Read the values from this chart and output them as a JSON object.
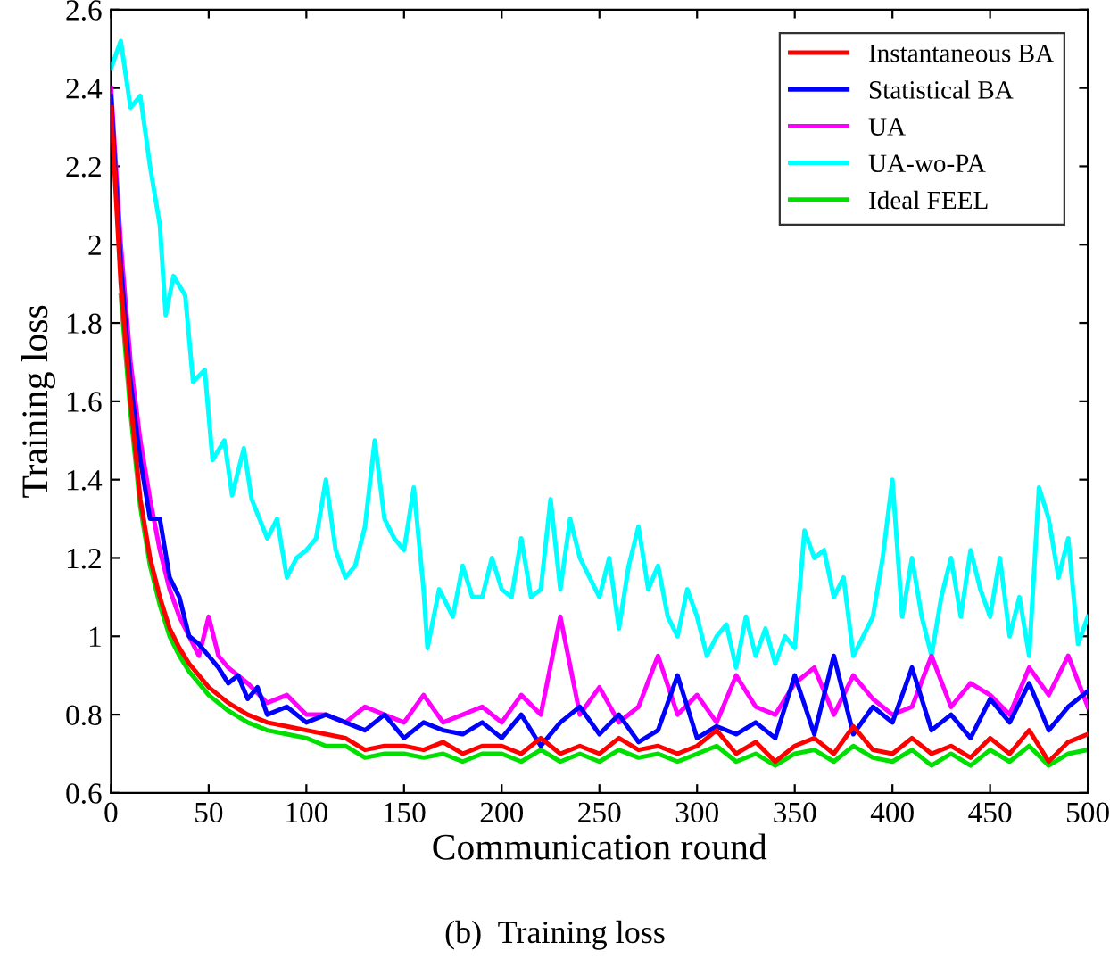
{
  "chart_data": {
    "type": "line",
    "xlabel": "Communication round",
    "ylabel": "Training loss",
    "annotations": [
      "(b)  Training loss"
    ],
    "xlim": [
      0,
      500
    ],
    "ylim": [
      0.6,
      2.6
    ],
    "xticks": [
      0,
      50,
      100,
      150,
      200,
      250,
      300,
      350,
      400,
      450,
      500
    ],
    "yticks": [
      0.6,
      0.8,
      1,
      1.2,
      1.4,
      1.6,
      1.8,
      2,
      2.2,
      2.4,
      2.6
    ],
    "grid": false,
    "legend": "top right",
    "marker": "none",
    "line_style": "solid",
    "series": [
      {
        "name": "Instantaneous BA",
        "color": "#ff0000",
        "x": [
          0,
          5,
          10,
          15,
          20,
          25,
          30,
          35,
          40,
          45,
          50,
          60,
          70,
          80,
          90,
          100,
          110,
          120,
          130,
          140,
          150,
          160,
          170,
          180,
          190,
          200,
          210,
          220,
          230,
          240,
          250,
          260,
          270,
          280,
          290,
          300,
          310,
          320,
          330,
          340,
          350,
          360,
          370,
          380,
          390,
          400,
          410,
          420,
          430,
          440,
          450,
          460,
          470,
          480,
          490,
          500
        ],
        "values": [
          2.35,
          1.9,
          1.6,
          1.35,
          1.2,
          1.1,
          1.02,
          0.97,
          0.93,
          0.9,
          0.87,
          0.83,
          0.8,
          0.78,
          0.77,
          0.76,
          0.75,
          0.74,
          0.71,
          0.72,
          0.72,
          0.71,
          0.73,
          0.7,
          0.72,
          0.72,
          0.7,
          0.74,
          0.7,
          0.72,
          0.7,
          0.74,
          0.71,
          0.72,
          0.7,
          0.72,
          0.76,
          0.7,
          0.73,
          0.68,
          0.72,
          0.74,
          0.7,
          0.77,
          0.71,
          0.7,
          0.74,
          0.7,
          0.72,
          0.69,
          0.74,
          0.7,
          0.76,
          0.68,
          0.73,
          0.75
        ]
      },
      {
        "name": "Statistical BA",
        "color": "#0000ff",
        "x": [
          0,
          5,
          10,
          15,
          20,
          25,
          30,
          35,
          40,
          45,
          50,
          55,
          60,
          65,
          70,
          75,
          80,
          90,
          100,
          110,
          120,
          130,
          140,
          150,
          160,
          170,
          180,
          190,
          200,
          210,
          220,
          230,
          240,
          250,
          260,
          270,
          280,
          290,
          300,
          310,
          320,
          330,
          340,
          350,
          360,
          370,
          380,
          390,
          400,
          410,
          420,
          430,
          440,
          450,
          460,
          470,
          480,
          490,
          500
        ],
        "values": [
          2.38,
          1.95,
          1.65,
          1.45,
          1.3,
          1.3,
          1.15,
          1.1,
          1.0,
          0.98,
          0.95,
          0.92,
          0.88,
          0.9,
          0.84,
          0.87,
          0.8,
          0.82,
          0.78,
          0.8,
          0.78,
          0.76,
          0.8,
          0.74,
          0.78,
          0.76,
          0.75,
          0.78,
          0.74,
          0.8,
          0.72,
          0.78,
          0.82,
          0.75,
          0.8,
          0.73,
          0.76,
          0.9,
          0.74,
          0.77,
          0.75,
          0.78,
          0.74,
          0.9,
          0.75,
          0.95,
          0.75,
          0.82,
          0.78,
          0.92,
          0.76,
          0.8,
          0.74,
          0.84,
          0.78,
          0.88,
          0.76,
          0.82,
          0.86
        ]
      },
      {
        "name": "UA",
        "color": "#ff00ff",
        "x": [
          0,
          5,
          10,
          15,
          20,
          25,
          30,
          35,
          40,
          45,
          50,
          55,
          60,
          70,
          80,
          90,
          100,
          110,
          120,
          130,
          140,
          150,
          160,
          170,
          180,
          190,
          200,
          210,
          220,
          230,
          240,
          250,
          260,
          270,
          280,
          290,
          300,
          310,
          320,
          330,
          340,
          350,
          360,
          370,
          380,
          390,
          400,
          410,
          420,
          430,
          440,
          450,
          460,
          470,
          480,
          490,
          500
        ],
        "values": [
          2.4,
          2.0,
          1.7,
          1.5,
          1.35,
          1.22,
          1.12,
          1.05,
          1.0,
          0.95,
          1.05,
          0.95,
          0.92,
          0.88,
          0.83,
          0.85,
          0.8,
          0.8,
          0.78,
          0.82,
          0.8,
          0.78,
          0.85,
          0.78,
          0.8,
          0.82,
          0.78,
          0.85,
          0.8,
          1.05,
          0.8,
          0.87,
          0.78,
          0.82,
          0.95,
          0.8,
          0.85,
          0.78,
          0.9,
          0.82,
          0.8,
          0.88,
          0.92,
          0.8,
          0.9,
          0.84,
          0.8,
          0.82,
          0.95,
          0.82,
          0.88,
          0.85,
          0.8,
          0.92,
          0.85,
          0.95,
          0.82
        ]
      },
      {
        "name": "UA-wo-PA",
        "color": "#00ffff",
        "x": [
          0,
          5,
          10,
          15,
          20,
          25,
          28,
          32,
          38,
          42,
          48,
          52,
          58,
          62,
          68,
          72,
          80,
          85,
          90,
          95,
          100,
          105,
          110,
          115,
          120,
          125,
          130,
          135,
          140,
          145,
          150,
          155,
          160,
          162,
          168,
          175,
          180,
          185,
          190,
          195,
          200,
          205,
          210,
          215,
          220,
          225,
          230,
          235,
          240,
          245,
          250,
          255,
          260,
          265,
          270,
          275,
          280,
          285,
          290,
          295,
          300,
          305,
          310,
          315,
          320,
          325,
          330,
          335,
          340,
          345,
          350,
          355,
          360,
          365,
          370,
          375,
          380,
          385,
          390,
          395,
          400,
          405,
          410,
          415,
          420,
          425,
          430,
          435,
          440,
          445,
          450,
          455,
          460,
          465,
          470,
          475,
          480,
          485,
          490,
          495,
          500
        ],
        "values": [
          2.45,
          2.52,
          2.35,
          2.38,
          2.2,
          2.05,
          1.82,
          1.92,
          1.87,
          1.65,
          1.68,
          1.45,
          1.5,
          1.36,
          1.48,
          1.35,
          1.25,
          1.3,
          1.15,
          1.2,
          1.22,
          1.25,
          1.4,
          1.22,
          1.15,
          1.18,
          1.28,
          1.5,
          1.3,
          1.25,
          1.22,
          1.38,
          1.12,
          0.97,
          1.12,
          1.05,
          1.18,
          1.1,
          1.1,
          1.2,
          1.12,
          1.1,
          1.25,
          1.1,
          1.12,
          1.35,
          1.12,
          1.3,
          1.2,
          1.15,
          1.1,
          1.2,
          1.02,
          1.18,
          1.28,
          1.12,
          1.18,
          1.05,
          1.0,
          1.12,
          1.05,
          0.95,
          1.0,
          1.03,
          0.92,
          1.05,
          0.95,
          1.02,
          0.93,
          1.0,
          0.97,
          1.27,
          1.2,
          1.22,
          1.1,
          1.15,
          0.95,
          1.0,
          1.05,
          1.2,
          1.4,
          1.05,
          1.2,
          1.05,
          0.95,
          1.1,
          1.2,
          1.05,
          1.22,
          1.12,
          1.05,
          1.2,
          1.0,
          1.1,
          0.95,
          1.38,
          1.3,
          1.15,
          1.25,
          0.98,
          1.05
        ]
      },
      {
        "name": "Ideal FEEL",
        "color": "#00e000",
        "x": [
          5,
          10,
          15,
          20,
          25,
          30,
          35,
          40,
          45,
          50,
          60,
          70,
          80,
          90,
          100,
          110,
          120,
          130,
          140,
          150,
          160,
          170,
          180,
          190,
          200,
          210,
          220,
          230,
          240,
          250,
          260,
          270,
          280,
          290,
          300,
          310,
          320,
          330,
          340,
          350,
          360,
          370,
          380,
          390,
          400,
          410,
          420,
          430,
          440,
          450,
          460,
          470,
          480,
          490,
          500
        ],
        "values": [
          1.87,
          1.57,
          1.33,
          1.18,
          1.08,
          1.0,
          0.95,
          0.91,
          0.88,
          0.85,
          0.81,
          0.78,
          0.76,
          0.75,
          0.74,
          0.72,
          0.72,
          0.69,
          0.7,
          0.7,
          0.69,
          0.7,
          0.68,
          0.7,
          0.7,
          0.68,
          0.71,
          0.68,
          0.7,
          0.68,
          0.71,
          0.69,
          0.7,
          0.68,
          0.7,
          0.72,
          0.68,
          0.7,
          0.67,
          0.7,
          0.71,
          0.68,
          0.72,
          0.69,
          0.68,
          0.71,
          0.67,
          0.7,
          0.67,
          0.71,
          0.68,
          0.72,
          0.67,
          0.7,
          0.71
        ]
      }
    ]
  }
}
